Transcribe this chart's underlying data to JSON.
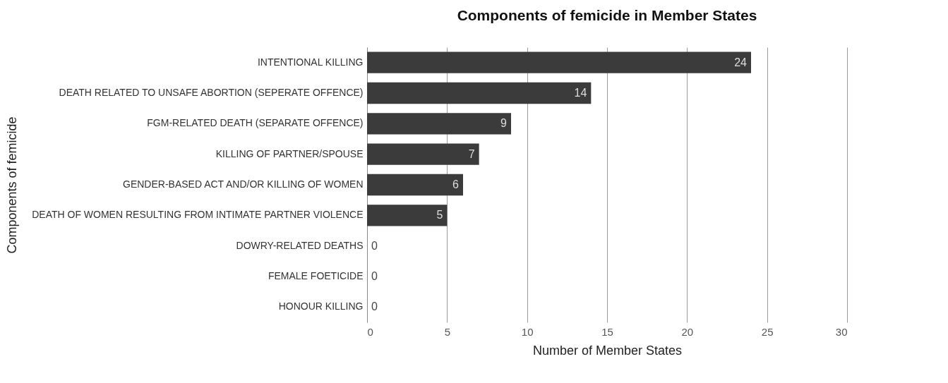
{
  "chart_data": {
    "type": "bar",
    "orientation": "horizontal",
    "title": "Components of femicide in Member States",
    "xlabel": "Number of Member States",
    "ylabel": "Components of femicide",
    "categories": [
      "INTENTIONAL KILLING",
      "DEATH RELATED TO UNSAFE ABORTION (SEPERATE OFFENCE)",
      "FGM-RELATED DEATH (SEPARATE OFFENCE)",
      "KILLING OF PARTNER/SPOUSE",
      "GENDER-BASED ACT AND/OR KILLING OF WOMEN",
      "DEATH OF WOMEN RESULTING FROM INTIMATE PARTNER VIOLENCE",
      "DOWRY-RELATED DEATHS",
      "FEMALE FOETICIDE",
      "HONOUR KILLING"
    ],
    "values": [
      24,
      14,
      9,
      7,
      6,
      5,
      0,
      0,
      0
    ],
    "color": "#3b3b3b",
    "xlim": [
      0,
      30
    ],
    "xticks": [
      0,
      5,
      10,
      15,
      20,
      25,
      30
    ],
    "grid": "x",
    "data_labels": true
  }
}
